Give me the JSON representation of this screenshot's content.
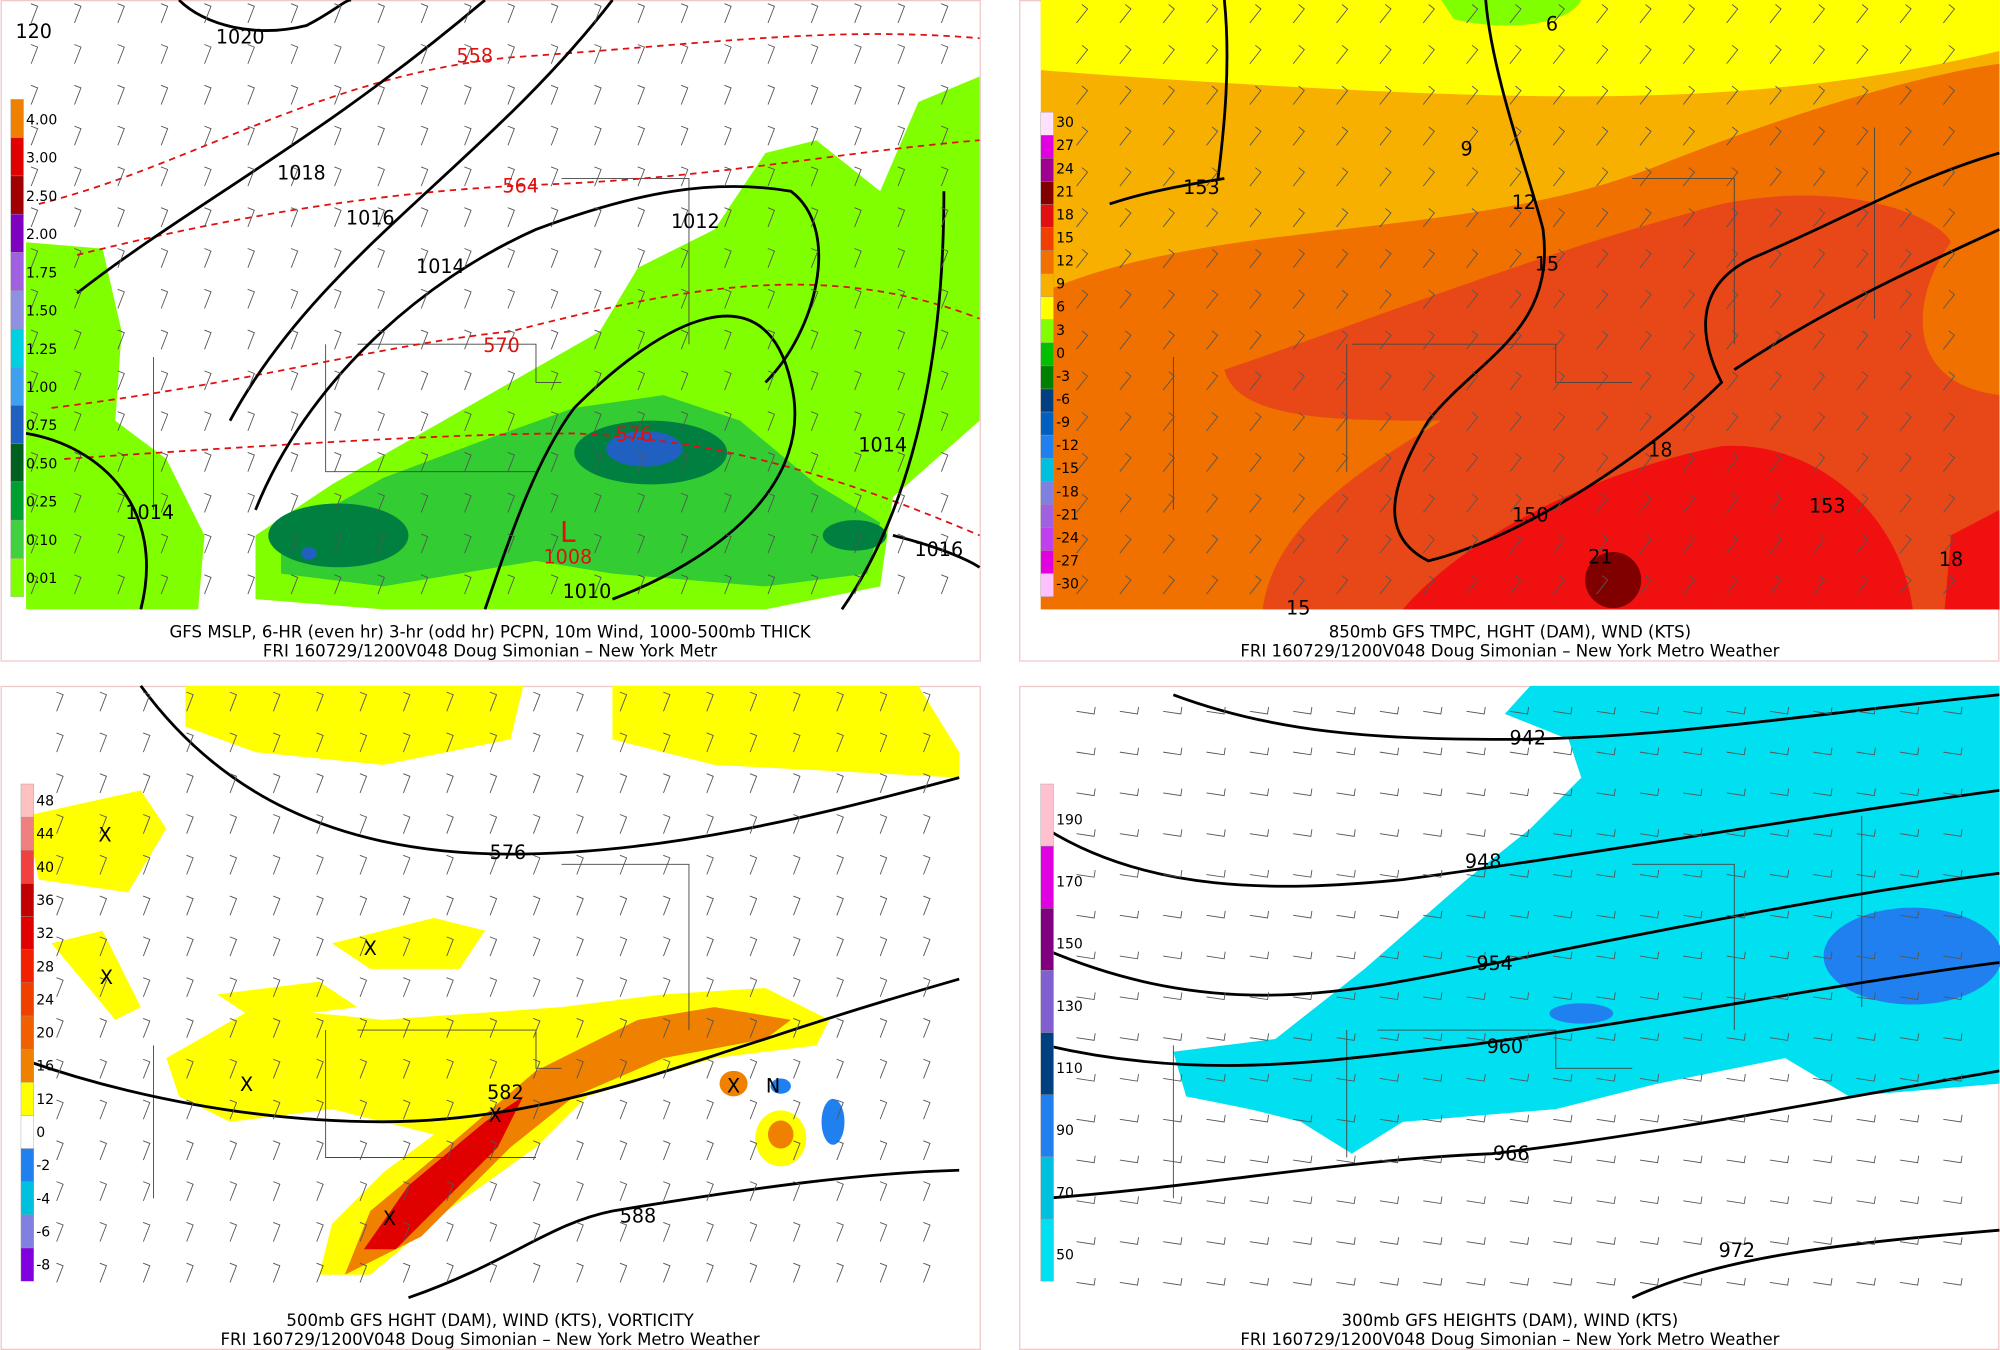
{
  "panels": [
    {
      "title": "GFS MSLP, 6-HR (even hr) 3-hr (odd hr) PCPN, 10m Wind, 1000-500mb THICK",
      "subtitle": "FRI 160729/1200V048 Doug Simonian – New York Metr",
      "legend": [
        {
          "label": "4.00",
          "color": "#f08000"
        },
        {
          "label": "3.00",
          "color": "#e00000"
        },
        {
          "label": "2.50",
          "color": "#a00000"
        },
        {
          "label": "2.00",
          "color": "#8000c0"
        },
        {
          "label": "1.75",
          "color": "#a060e0"
        },
        {
          "label": "1.50",
          "color": "#9090e0"
        },
        {
          "label": "1.25",
          "color": "#00d0e0"
        },
        {
          "label": "1.00",
          "color": "#40a0f0"
        },
        {
          "label": "0.75",
          "color": "#2060c0"
        },
        {
          "label": "0.50",
          "color": "#006020"
        },
        {
          "label": "0.25",
          "color": "#00a030"
        },
        {
          "label": "0.10",
          "color": "#40d040"
        },
        {
          "label": "0.01",
          "color": "#80ff00"
        }
      ],
      "labels": [
        "120",
        "1020",
        "1018",
        "1016",
        "1014",
        "1012",
        "1014",
        "1014",
        "1016",
        "1010",
        "1008",
        "L",
        "558",
        "564",
        "570",
        "576"
      ]
    },
    {
      "title": "850mb GFS TMPC, HGHT (DAM), WND (KTS)",
      "subtitle": "FRI 160729/1200V048 Doug Simonian – New York Metro Weather",
      "legend": [
        {
          "label": "30",
          "color": "#ffe0ff"
        },
        {
          "label": "27",
          "color": "#e000e0"
        },
        {
          "label": "24",
          "color": "#a00090"
        },
        {
          "label": "21",
          "color": "#800000"
        },
        {
          "label": "18",
          "color": "#e01010"
        },
        {
          "label": "15",
          "color": "#f04000"
        },
        {
          "label": "12",
          "color": "#f07000"
        },
        {
          "label": "9",
          "color": "#f8b000"
        },
        {
          "label": "6",
          "color": "#ffff00"
        },
        {
          "label": "3",
          "color": "#80ff00"
        },
        {
          "label": "0",
          "color": "#00c000"
        },
        {
          "label": "-3",
          "color": "#008000"
        },
        {
          "label": "-6",
          "color": "#004080"
        },
        {
          "label": "-9",
          "color": "#0060c0"
        },
        {
          "label": "-12",
          "color": "#2080f0"
        },
        {
          "label": "-15",
          "color": "#00c0e0"
        },
        {
          "label": "-18",
          "color": "#8080e0"
        },
        {
          "label": "-21",
          "color": "#a060e0"
        },
        {
          "label": "-24",
          "color": "#c040f0"
        },
        {
          "label": "-27",
          "color": "#e000e0"
        },
        {
          "label": "-30",
          "color": "#ffc0ff"
        }
      ],
      "labels": [
        "6",
        "9",
        "12",
        "15",
        "153",
        "18",
        "150",
        "153",
        "21",
        "18",
        "15"
      ]
    },
    {
      "title": "500mb GFS HGHT (DAM), WIND (KTS), VORTICITY",
      "subtitle": "FRI 160729/1200V048 Doug Simonian – New York Metro Weather",
      "legend": [
        {
          "label": "48",
          "color": "#ffc0c0"
        },
        {
          "label": "44",
          "color": "#f08080"
        },
        {
          "label": "40",
          "color": "#f04040"
        },
        {
          "label": "36",
          "color": "#c00000"
        },
        {
          "label": "32",
          "color": "#e00000"
        },
        {
          "label": "28",
          "color": "#f02000"
        },
        {
          "label": "24",
          "color": "#f04000"
        },
        {
          "label": "20",
          "color": "#f06000"
        },
        {
          "label": "16",
          "color": "#f08000"
        },
        {
          "label": "12",
          "color": "#ffff00"
        },
        {
          "label": "0",
          "color": "#ffffff"
        },
        {
          "label": "-2",
          "color": "#2080f0"
        },
        {
          "label": "-4",
          "color": "#00c0e0"
        },
        {
          "label": "-6",
          "color": "#8080e0"
        },
        {
          "label": "-8",
          "color": "#8000e0"
        }
      ],
      "labels": [
        "576",
        "582",
        "588",
        "X",
        "X",
        "X",
        "X",
        "X",
        "X",
        "X",
        "N"
      ]
    },
    {
      "title": "300mb GFS HEIGHTS (DAM), WIND (KTS)",
      "subtitle": "FRI 160729/1200V048 Doug Simonian – New York Metro Weather",
      "legend": [
        {
          "label": "190",
          "color": "#ffc0d0"
        },
        {
          "label": "170",
          "color": "#e000e0"
        },
        {
          "label": "150",
          "color": "#800080"
        },
        {
          "label": "130",
          "color": "#8060d0"
        },
        {
          "label": "110",
          "color": "#004080"
        },
        {
          "label": "90",
          "color": "#2080f0"
        },
        {
          "label": "70",
          "color": "#00c0e0"
        },
        {
          "label": "50",
          "color": "#00e0f0"
        }
      ],
      "labels": [
        "942",
        "948",
        "954",
        "960",
        "966",
        "972"
      ]
    }
  ]
}
